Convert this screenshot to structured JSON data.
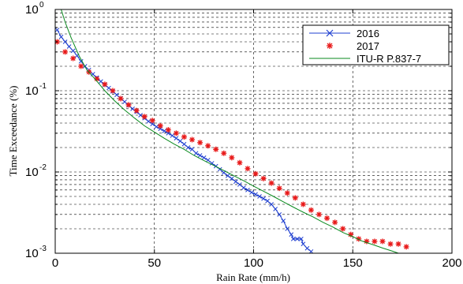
{
  "chart_data": {
    "type": "line",
    "xlabel": "Rain Rate (mm/h)",
    "ylabel": "Time Exceedance (%)",
    "xlim": [
      0,
      200
    ],
    "ylim": [
      0.001,
      1
    ],
    "yscale": "log",
    "grid": true,
    "legend_position": "top-right",
    "x_ticks": [
      {
        "value": 0,
        "label": "0"
      },
      {
        "value": 50,
        "label": "50"
      },
      {
        "value": 100,
        "label": "100"
      },
      {
        "value": 150,
        "label": "150"
      },
      {
        "value": 200,
        "label": "200"
      }
    ],
    "y_ticks": [
      {
        "value": 1,
        "base": "10",
        "exp": "0"
      },
      {
        "value": 0.1,
        "base": "10",
        "exp": "-1"
      },
      {
        "value": 0.01,
        "base": "10",
        "exp": "-2"
      },
      {
        "value": 0.001,
        "base": "10",
        "exp": "-3"
      }
    ],
    "series": [
      {
        "name": "2016",
        "color": "#1f3fd0",
        "marker": "x",
        "line": true,
        "points": [
          [
            1,
            0.56
          ],
          [
            3,
            0.46
          ],
          [
            5,
            0.4
          ],
          [
            7,
            0.35
          ],
          [
            9,
            0.31
          ],
          [
            11,
            0.27
          ],
          [
            13,
            0.23
          ],
          [
            15,
            0.2
          ],
          [
            17,
            0.18
          ],
          [
            19,
            0.16
          ],
          [
            21,
            0.145
          ],
          [
            23,
            0.13
          ],
          [
            25,
            0.118
          ],
          [
            27,
            0.108
          ],
          [
            29,
            0.098
          ],
          [
            31,
            0.089
          ],
          [
            33,
            0.081
          ],
          [
            35,
            0.073
          ],
          [
            37,
            0.066
          ],
          [
            39,
            0.06
          ],
          [
            41,
            0.055
          ],
          [
            43,
            0.05
          ],
          [
            45,
            0.046
          ],
          [
            47,
            0.042
          ],
          [
            49,
            0.039
          ],
          [
            51,
            0.036
          ],
          [
            53,
            0.034
          ],
          [
            55,
            0.032
          ],
          [
            57,
            0.03
          ],
          [
            59,
            0.028
          ],
          [
            61,
            0.026
          ],
          [
            63,
            0.024
          ],
          [
            65,
            0.022
          ],
          [
            67,
            0.02
          ],
          [
            69,
            0.019
          ],
          [
            71,
            0.017
          ],
          [
            73,
            0.016
          ],
          [
            75,
            0.015
          ],
          [
            77,
            0.014
          ],
          [
            79,
            0.0128
          ],
          [
            81,
            0.0118
          ],
          [
            83,
            0.0108
          ],
          [
            85,
            0.0098
          ],
          [
            87,
            0.009
          ],
          [
            89,
            0.0083
          ],
          [
            91,
            0.0076
          ],
          [
            93,
            0.007
          ],
          [
            95,
            0.0064
          ],
          [
            97,
            0.006
          ],
          [
            99,
            0.0056
          ],
          [
            101,
            0.0053
          ],
          [
            103,
            0.005
          ],
          [
            105,
            0.0047
          ],
          [
            107,
            0.0044
          ],
          [
            109,
            0.004
          ],
          [
            111,
            0.0035
          ],
          [
            113,
            0.003
          ],
          [
            115,
            0.0025
          ],
          [
            117,
            0.002
          ],
          [
            119,
            0.0017
          ],
          [
            120,
            0.0015
          ],
          [
            122,
            0.0015
          ],
          [
            124,
            0.0015
          ],
          [
            125,
            0.0013
          ],
          [
            127,
            0.00115
          ],
          [
            129,
            0.00105
          ]
        ]
      },
      {
        "name": "2017",
        "color": "#e81a1a",
        "marker": "*",
        "line": false,
        "points": [
          [
            1,
            0.4
          ],
          [
            5,
            0.3
          ],
          [
            9,
            0.25
          ],
          [
            13,
            0.2
          ],
          [
            17,
            0.17
          ],
          [
            21,
            0.14
          ],
          [
            25,
            0.12
          ],
          [
            29,
            0.1
          ],
          [
            33,
            0.08
          ],
          [
            37,
            0.067
          ],
          [
            41,
            0.057
          ],
          [
            45,
            0.048
          ],
          [
            49,
            0.043
          ],
          [
            53,
            0.037
          ],
          [
            57,
            0.033
          ],
          [
            61,
            0.03
          ],
          [
            65,
            0.027
          ],
          [
            69,
            0.025
          ],
          [
            73,
            0.023
          ],
          [
            77,
            0.021
          ],
          [
            81,
            0.019
          ],
          [
            85,
            0.017
          ],
          [
            89,
            0.015
          ],
          [
            93,
            0.013
          ],
          [
            97,
            0.011
          ],
          [
            101,
            0.0095
          ],
          [
            105,
            0.0083
          ],
          [
            109,
            0.0073
          ],
          [
            113,
            0.0063
          ],
          [
            117,
            0.0055
          ],
          [
            121,
            0.0048
          ],
          [
            125,
            0.004
          ],
          [
            129,
            0.0034
          ],
          [
            133,
            0.003
          ],
          [
            137,
            0.0027
          ],
          [
            141,
            0.0024
          ],
          [
            145,
            0.002
          ],
          [
            149,
            0.0017
          ],
          [
            153,
            0.0015
          ],
          [
            157,
            0.0014
          ],
          [
            161,
            0.0014
          ],
          [
            165,
            0.0014
          ],
          [
            169,
            0.0013
          ],
          [
            173,
            0.0013
          ],
          [
            177,
            0.0012
          ]
        ]
      },
      {
        "name": "ITU-R P.837-7",
        "color": "#0a8a1e",
        "marker": "none",
        "line": true,
        "points": [
          [
            3,
            1.0
          ],
          [
            5,
            0.7
          ],
          [
            8,
            0.45
          ],
          [
            12,
            0.27
          ],
          [
            16,
            0.18
          ],
          [
            20,
            0.14
          ],
          [
            25,
            0.1
          ],
          [
            30,
            0.075
          ],
          [
            35,
            0.058
          ],
          [
            40,
            0.046
          ],
          [
            45,
            0.037
          ],
          [
            50,
            0.031
          ],
          [
            55,
            0.026
          ],
          [
            60,
            0.022
          ],
          [
            65,
            0.019
          ],
          [
            70,
            0.016
          ],
          [
            75,
            0.0138
          ],
          [
            80,
            0.012
          ],
          [
            85,
            0.0104
          ],
          [
            90,
            0.009
          ],
          [
            95,
            0.0078
          ],
          [
            100,
            0.0067
          ],
          [
            105,
            0.0058
          ],
          [
            110,
            0.005
          ],
          [
            115,
            0.0043
          ],
          [
            120,
            0.0037
          ],
          [
            125,
            0.0032
          ],
          [
            130,
            0.0028
          ],
          [
            135,
            0.0024
          ],
          [
            140,
            0.0021
          ],
          [
            145,
            0.0018
          ],
          [
            150,
            0.0016
          ],
          [
            155,
            0.0014
          ],
          [
            160,
            0.00128
          ],
          [
            165,
            0.00116
          ],
          [
            170,
            0.00106
          ],
          [
            173,
            0.001
          ]
        ]
      }
    ]
  }
}
